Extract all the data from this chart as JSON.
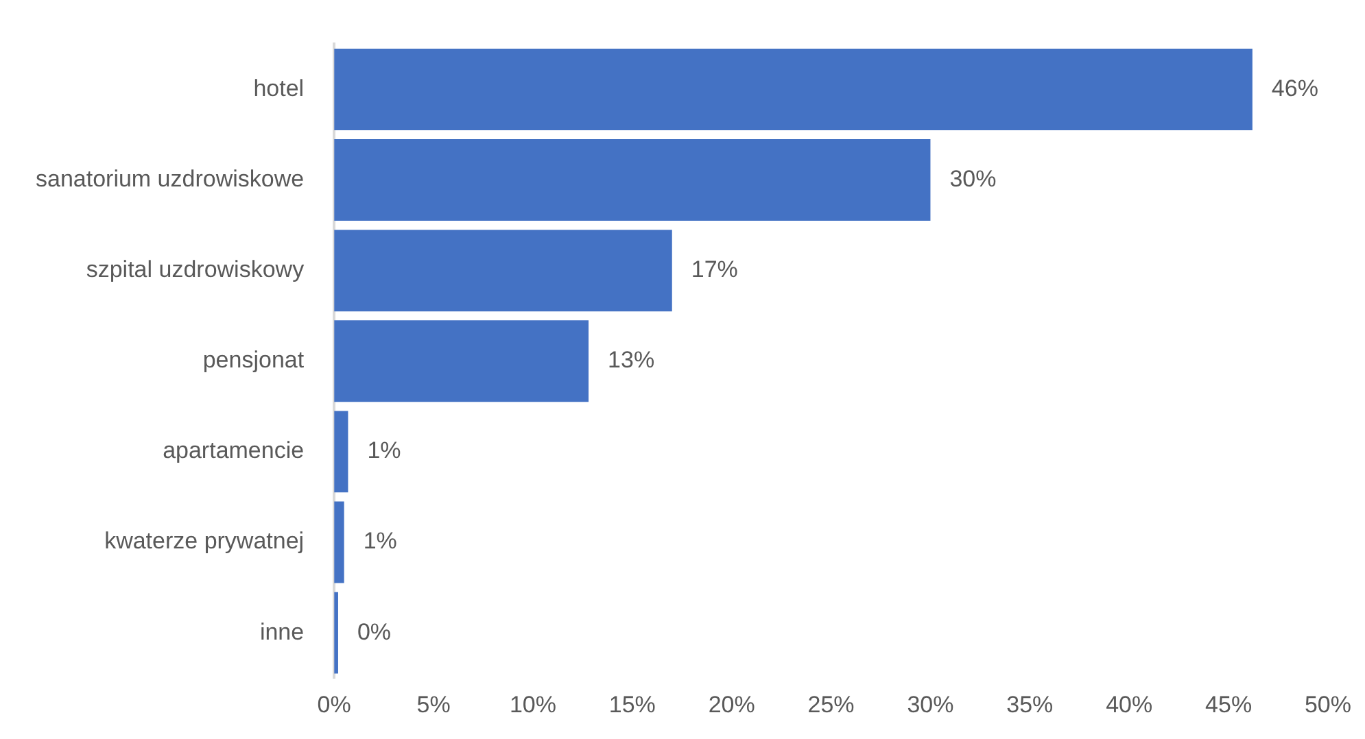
{
  "chart_data": {
    "type": "bar",
    "orientation": "horizontal",
    "categories": [
      "hotel",
      "sanatorium uzdrowiskowe",
      "szpital uzdrowiskowy",
      "pensjonat",
      "apartamencie",
      "kwaterze prywatnej",
      "inne"
    ],
    "values": [
      46.2,
      30.0,
      17.0,
      12.8,
      0.7,
      0.5,
      0.2
    ],
    "value_labels": [
      "46%",
      "30%",
      "17%",
      "13%",
      "1%",
      "1%",
      "0%"
    ],
    "color": "#4472c4",
    "xlim": [
      0,
      50
    ],
    "xticks": [
      {
        "value": 0,
        "label": "0%"
      },
      {
        "value": 5,
        "label": "5%"
      },
      {
        "value": 10,
        "label": "10%"
      },
      {
        "value": 15,
        "label": "15%"
      },
      {
        "value": 20,
        "label": "20%"
      },
      {
        "value": 25,
        "label": "25%"
      },
      {
        "value": 30,
        "label": "30%"
      },
      {
        "value": 35,
        "label": "35%"
      },
      {
        "value": 40,
        "label": "40%"
      },
      {
        "value": 45,
        "label": "45%"
      },
      {
        "value": 50,
        "label": "50%"
      }
    ],
    "grid": false,
    "legend": false
  }
}
